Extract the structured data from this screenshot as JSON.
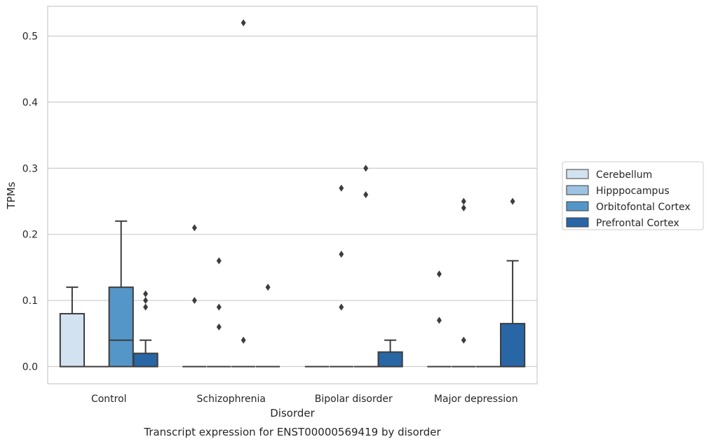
{
  "caption": "Transcript expression for ENST00000569419 by disorder",
  "chart_data": {
    "type": "box",
    "xlabel": "Disorder",
    "ylabel": "TPMs",
    "ylim": [
      -0.026,
      0.545
    ],
    "yticks": [
      0.0,
      0.1,
      0.2,
      0.3,
      0.4,
      0.5
    ],
    "ytick_labels": [
      "0.0",
      "0.1",
      "0.2",
      "0.3",
      "0.4",
      "0.5"
    ],
    "grid": "horizontal",
    "legend_position": "right",
    "categories": [
      "Control",
      "Schizophrenia",
      "Bipolar disorder",
      "Major depression"
    ],
    "series": [
      {
        "name": "Cerebellum",
        "color": "#d3e2f1",
        "boxes": [
          {
            "q1": 0.0,
            "median": 0.0,
            "q3": 0.08,
            "whisker_low": 0.0,
            "whisker_high": 0.12,
            "outliers": []
          },
          {
            "q1": 0.0,
            "median": 0.0,
            "q3": 0.0,
            "whisker_low": 0.0,
            "whisker_high": 0.0,
            "outliers": [
              0.1,
              0.21
            ]
          },
          {
            "q1": 0.0,
            "median": 0.0,
            "q3": 0.0,
            "whisker_low": 0.0,
            "whisker_high": 0.0,
            "outliers": []
          },
          {
            "q1": 0.0,
            "median": 0.0,
            "q3": 0.0,
            "whisker_low": 0.0,
            "whisker_high": 0.0,
            "outliers": [
              0.07,
              0.14
            ]
          }
        ]
      },
      {
        "name": "Hipppocampus",
        "color": "#9dc3e0",
        "boxes": [
          {
            "q1": 0.0,
            "median": 0.0,
            "q3": 0.0,
            "whisker_low": 0.0,
            "whisker_high": 0.0,
            "outliers": []
          },
          {
            "q1": 0.0,
            "median": 0.0,
            "q3": 0.0,
            "whisker_low": 0.0,
            "whisker_high": 0.0,
            "outliers": [
              0.06,
              0.09,
              0.16
            ]
          },
          {
            "q1": 0.0,
            "median": 0.0,
            "q3": 0.0,
            "whisker_low": 0.0,
            "whisker_high": 0.0,
            "outliers": [
              0.09,
              0.17,
              0.27
            ]
          },
          {
            "q1": 0.0,
            "median": 0.0,
            "q3": 0.0,
            "whisker_low": 0.0,
            "whisker_high": 0.0,
            "outliers": [
              0.04,
              0.24,
              0.25
            ]
          }
        ]
      },
      {
        "name": "Orbitofontal Cortex",
        "color": "#5596c8",
        "boxes": [
          {
            "q1": 0.0,
            "median": 0.04,
            "q3": 0.12,
            "whisker_low": 0.0,
            "whisker_high": 0.22,
            "outliers": []
          },
          {
            "q1": 0.0,
            "median": 0.0,
            "q3": 0.0,
            "whisker_low": 0.0,
            "whisker_high": 0.0,
            "outliers": [
              0.04,
              0.52
            ]
          },
          {
            "q1": 0.0,
            "median": 0.0,
            "q3": 0.0,
            "whisker_low": 0.0,
            "whisker_high": 0.0,
            "outliers": [
              0.26,
              0.3
            ]
          },
          {
            "q1": 0.0,
            "median": 0.0,
            "q3": 0.0,
            "whisker_low": 0.0,
            "whisker_high": 0.0,
            "outliers": []
          }
        ]
      },
      {
        "name": "Prefrontal Cortex",
        "color": "#2866a6",
        "boxes": [
          {
            "q1": 0.0,
            "median": 0.0,
            "q3": 0.02,
            "whisker_low": 0.0,
            "whisker_high": 0.04,
            "outliers": [
              0.09,
              0.1,
              0.11
            ]
          },
          {
            "q1": 0.0,
            "median": 0.0,
            "q3": 0.0,
            "whisker_low": 0.0,
            "whisker_high": 0.0,
            "outliers": [
              0.12
            ]
          },
          {
            "q1": 0.0,
            "median": 0.0,
            "q3": 0.022,
            "whisker_low": 0.0,
            "whisker_high": 0.04,
            "outliers": []
          },
          {
            "q1": 0.0,
            "median": 0.0,
            "q3": 0.065,
            "whisker_low": 0.0,
            "whisker_high": 0.16,
            "outliers": [
              0.25
            ]
          }
        ]
      }
    ]
  }
}
